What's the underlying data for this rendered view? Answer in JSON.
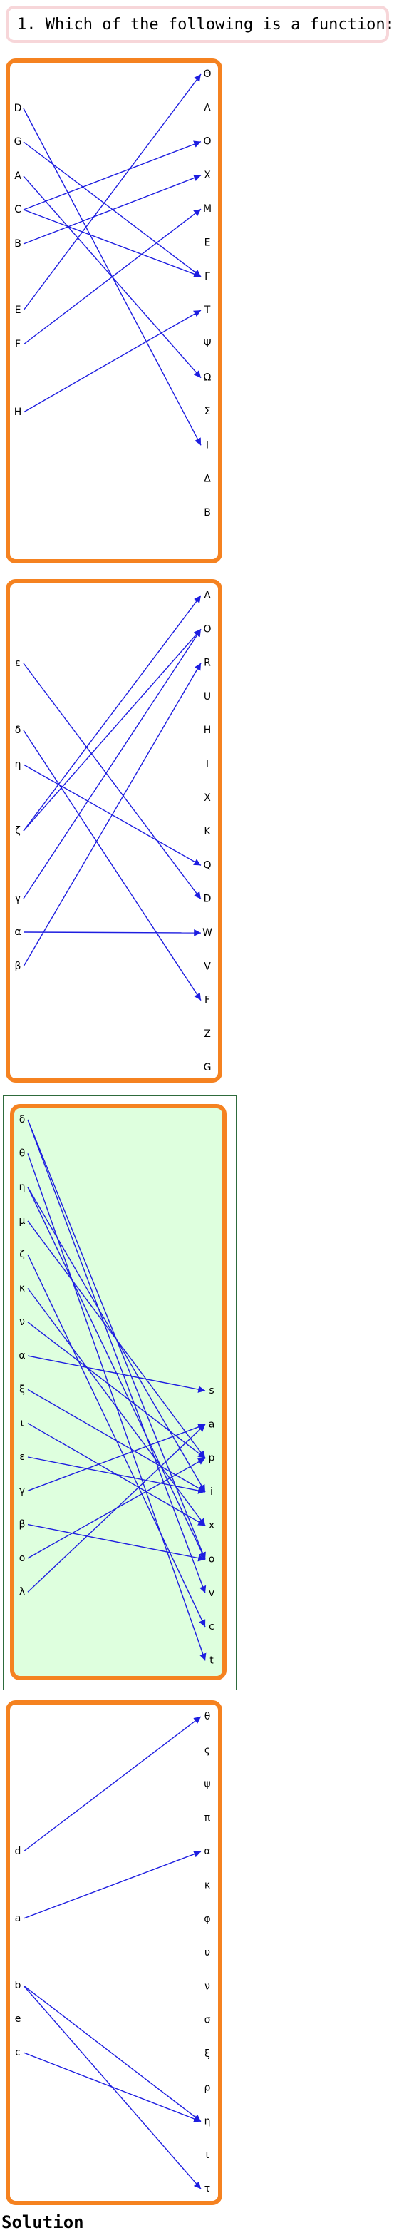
{
  "question": {
    "text": "1. Which of the following is a function:"
  },
  "solution_label": "Solution",
  "colors": {
    "panel_border": "#f58220",
    "arrow": "#1d1de0",
    "selected_fill": "#deffde",
    "question_border": "#f7d6d9"
  },
  "options": [
    {
      "domain": [
        "D",
        "G",
        "A",
        "C",
        "B",
        "E",
        "F",
        "H"
      ],
      "codomain": [
        "Θ",
        "Λ",
        "O",
        "X",
        "M",
        "E",
        "Γ",
        "T",
        "Ψ",
        "Ω",
        "Σ",
        "I",
        "Δ",
        "B"
      ],
      "arrows": [
        [
          0,
          11
        ],
        [
          1,
          6
        ],
        [
          2,
          9
        ],
        [
          3,
          2
        ],
        [
          3,
          6
        ],
        [
          4,
          3
        ],
        [
          5,
          0
        ],
        [
          6,
          4
        ],
        [
          7,
          7
        ]
      ],
      "selected": false
    },
    {
      "domain": [
        "ε",
        "δ",
        "η",
        "ζ",
        "γ",
        "α",
        "β"
      ],
      "codomain": [
        "A",
        "O",
        "R",
        "U",
        "H",
        "I",
        "X",
        "K",
        "Q",
        "D",
        "W",
        "V",
        "F",
        "Z",
        "G"
      ],
      "arrows": [
        [
          0,
          9
        ],
        [
          1,
          12
        ],
        [
          2,
          8
        ],
        [
          3,
          0
        ],
        [
          3,
          1
        ],
        [
          4,
          1
        ],
        [
          5,
          10
        ],
        [
          6,
          2
        ]
      ],
      "selected": false
    },
    {
      "domain": [
        "δ",
        "θ",
        "η",
        "μ",
        "ζ",
        "κ",
        "ν",
        "α",
        "ξ",
        "ι",
        "ε",
        "γ",
        "β",
        "ο",
        "λ"
      ],
      "codomain": [
        "s",
        "a",
        "p",
        "i",
        "x",
        "o",
        "v",
        "c",
        "t"
      ],
      "arrows": [
        [
          0,
          6
        ],
        [
          0,
          5
        ],
        [
          1,
          8
        ],
        [
          2,
          5
        ],
        [
          2,
          3
        ],
        [
          3,
          2
        ],
        [
          4,
          7
        ],
        [
          5,
          4
        ],
        [
          6,
          2
        ],
        [
          7,
          0
        ],
        [
          8,
          3
        ],
        [
          9,
          4
        ],
        [
          10,
          3
        ],
        [
          11,
          1
        ],
        [
          12,
          5
        ],
        [
          13,
          2
        ],
        [
          14,
          1
        ]
      ],
      "selected": true
    },
    {
      "domain": [
        "d",
        "a",
        "b",
        "e",
        "c"
      ],
      "codomain": [
        "θ",
        "ς",
        "ψ",
        "π",
        "α",
        "κ",
        "φ",
        "υ",
        "ν",
        "σ",
        "ξ",
        "ρ",
        "η",
        "ι",
        "τ"
      ],
      "arrows": [
        [
          0,
          0
        ],
        [
          1,
          4
        ],
        [
          2,
          12
        ],
        [
          2,
          14
        ],
        [
          4,
          12
        ]
      ],
      "selected": false
    }
  ]
}
